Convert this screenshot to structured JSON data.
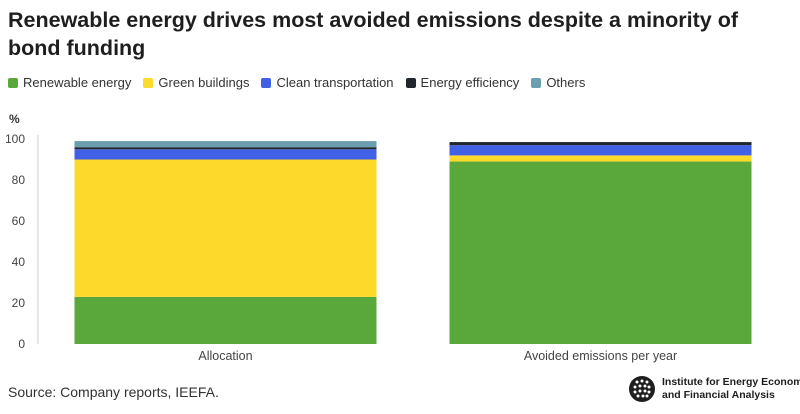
{
  "title": "Renewable energy drives most avoided emissions despite a minority of bond funding",
  "source": "Source: Company reports, IEEFA.",
  "logo_text": "Institute for Energy Economics and Financial Analysis",
  "chart_data": {
    "type": "bar",
    "stacked": true,
    "unit_label": "%",
    "ylabel": "%",
    "xlabel": "",
    "ylim": [
      0,
      100
    ],
    "yticks": [
      0,
      20,
      40,
      60,
      80,
      100
    ],
    "grid": false,
    "legend_position": "top-left",
    "categories": [
      "Allocation",
      "Avoided emissions per year"
    ],
    "series": [
      {
        "name": "Renewable energy",
        "color": "#5aa83c",
        "values": [
          23,
          89
        ]
      },
      {
        "name": "Green buildings",
        "color": "#fcd92b",
        "values": [
          67,
          3
        ]
      },
      {
        "name": "Clean transportation",
        "color": "#4160e6",
        "values": [
          5,
          5
        ]
      },
      {
        "name": "Energy efficiency",
        "color": "#20262c",
        "values": [
          1,
          1.5
        ]
      },
      {
        "name": "Others",
        "color": "#6b9fb0",
        "values": [
          3,
          0
        ]
      }
    ]
  }
}
